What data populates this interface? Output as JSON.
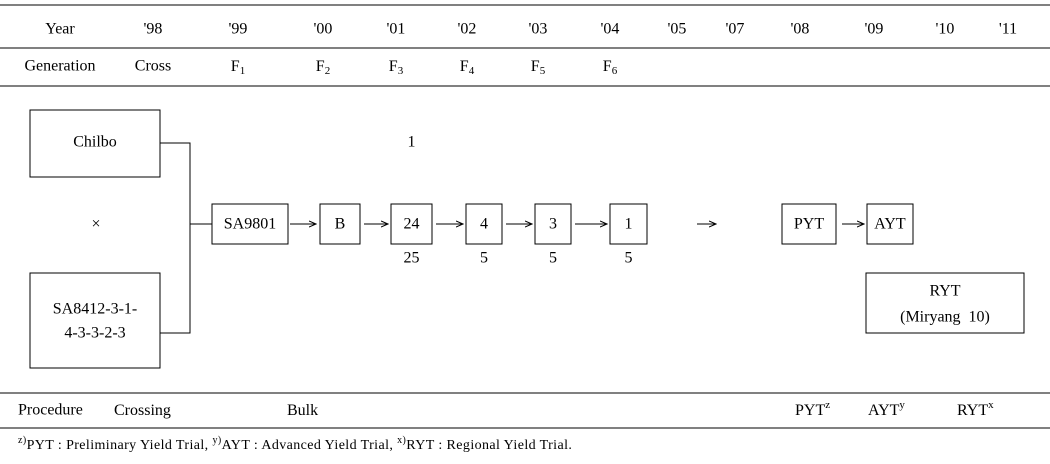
{
  "header": {
    "year_label": "Year",
    "years": [
      "'98",
      "'99",
      "'00",
      "'01",
      "'02",
      "'03",
      "'04",
      "'05",
      "'07",
      "'08",
      "'09",
      "'10",
      "'11"
    ],
    "generation_label": "Generation",
    "generations": [
      "Cross",
      {
        "base": "F",
        "sub": "1"
      },
      {
        "base": "F",
        "sub": "2"
      },
      {
        "base": "F",
        "sub": "3"
      },
      {
        "base": "F",
        "sub": "4"
      },
      {
        "base": "F",
        "sub": "5"
      },
      {
        "base": "F",
        "sub": "6"
      }
    ]
  },
  "parents": [
    {
      "lines": [
        "Chilbo"
      ]
    },
    {
      "lines": [
        "SA8412-3-1-",
        "4-3-3-2-3"
      ]
    }
  ],
  "cross_symbol": "×",
  "steps": [
    {
      "label": "SA9801"
    },
    {
      "label": "B"
    },
    {
      "label": "24",
      "above": "1",
      "below": "25"
    },
    {
      "label": "4",
      "below": "5"
    },
    {
      "label": "3",
      "below": "5"
    },
    {
      "label": "1",
      "below": "5"
    },
    {
      "label": "PYT"
    },
    {
      "label": "AYT"
    }
  ],
  "ryt": {
    "lines": [
      "RYT",
      "(Miryang  10)"
    ]
  },
  "procedure": {
    "label": "Procedure",
    "items": [
      {
        "text": "Crossing"
      },
      {
        "text": "Bulk"
      },
      {
        "text": "PYT",
        "sup": "z"
      },
      {
        "text": "AYT",
        "sup": "y"
      },
      {
        "text": "RYT",
        "sup": "x"
      }
    ]
  },
  "footnote": [
    {
      "mark": "z)",
      "text": "PYT : Preliminary Yield Trial, "
    },
    {
      "mark": "y)",
      "text": "AYT : Advanced Yield Trial, "
    },
    {
      "mark": "x)",
      "text": "RYT : Regional Yield Trial."
    }
  ]
}
